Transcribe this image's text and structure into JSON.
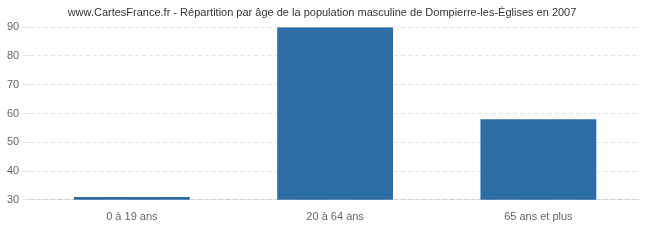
{
  "chart_data": {
    "type": "bar",
    "title": "www.CartesFrance.fr - Répartition par âge de la population masculine de Dompierre-les-Églises en 2007",
    "categories": [
      "0 à 19 ans",
      "20 à 64 ans",
      "65 ans et plus"
    ],
    "values": [
      31,
      90,
      58
    ],
    "color": "#2e6da4",
    "ylim": [
      30,
      90
    ],
    "yticks": [
      30,
      40,
      50,
      60,
      70,
      80,
      90
    ],
    "grid": true
  }
}
